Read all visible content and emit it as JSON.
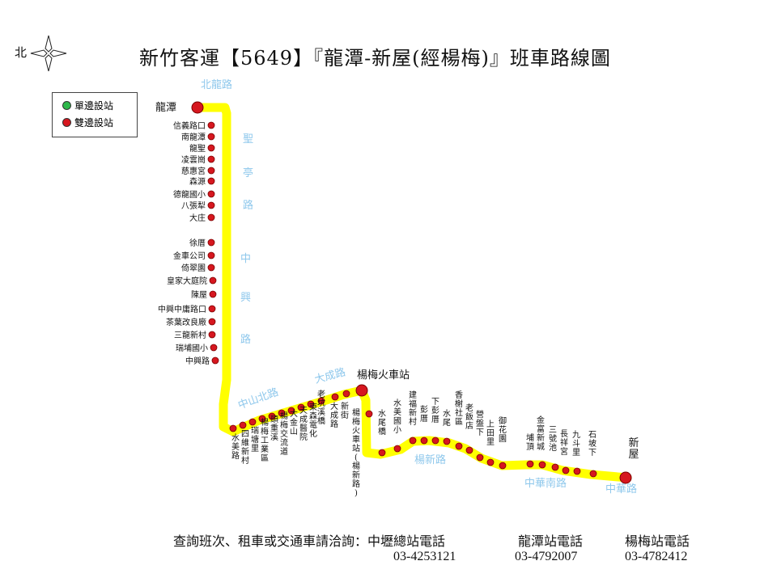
{
  "title": "新竹客運【5649】『龍潭-新屋(經楊梅)』班車路線圖",
  "north_label": "北",
  "legend": {
    "one_side": {
      "label": "單邊設站",
      "color": "#2db84a"
    },
    "both_sides": {
      "label": "雙邊設站",
      "color": "#d6171f"
    }
  },
  "colors": {
    "route": "#ffff00",
    "stop": "#d6171f",
    "street": "#8fc8ec",
    "text": "#111111"
  },
  "terminals": [
    {
      "name": "龍潭"
    },
    {
      "name": "楊梅火車站"
    },
    {
      "name": "新屋"
    }
  ],
  "streets": [
    "北龍路",
    "聖",
    "亭",
    "路",
    "中",
    "興",
    "路",
    "大成路",
    "中山北路",
    "楊新路",
    "中華南路",
    "中華路"
  ],
  "stops_left": [
    "信義路口",
    "南龍潭",
    "龍聖",
    "凌雲崗",
    "慈惠宮",
    "森源",
    "德龍國小",
    "八張犁",
    "大庄",
    "徐厝",
    "金車公司",
    "倚翠園",
    "皇家大庭院",
    "陳屋",
    "中興中庸路口",
    "茶葉改良廠",
    "三龍新村",
    "瑞埔國小",
    "中興路"
  ],
  "stops_bottom": [
    "水美路",
    "四維新村",
    "瑞塘里",
    "楊梅工業區",
    "頭重溪",
    "楊梅交流道",
    "大金山",
    "天成醫院",
    "東森電化",
    "老坑溪橋",
    "大成路",
    "新街"
  ],
  "stops_right": [
    "楊梅火車站(楊新路)",
    "水尾橋",
    "水美國小",
    "建福新村",
    "彭厝",
    "下彭厝",
    "水尾",
    "香榭社區",
    "老飯店",
    "營盤下",
    "上田里",
    "御花園",
    "埔頂",
    "金富新城",
    "三號池",
    "長祥宮",
    "九斗里",
    "石坡下"
  ],
  "footer": {
    "inquiry": "查詢班次、租車或交通車請洽詢：中壢總站電話",
    "phone1": "03-4253121",
    "longtan_label": "龍潭站電話",
    "phone2": "03-4792007",
    "yangmei_label": "楊梅站電話",
    "phone3": "03-4782412"
  }
}
